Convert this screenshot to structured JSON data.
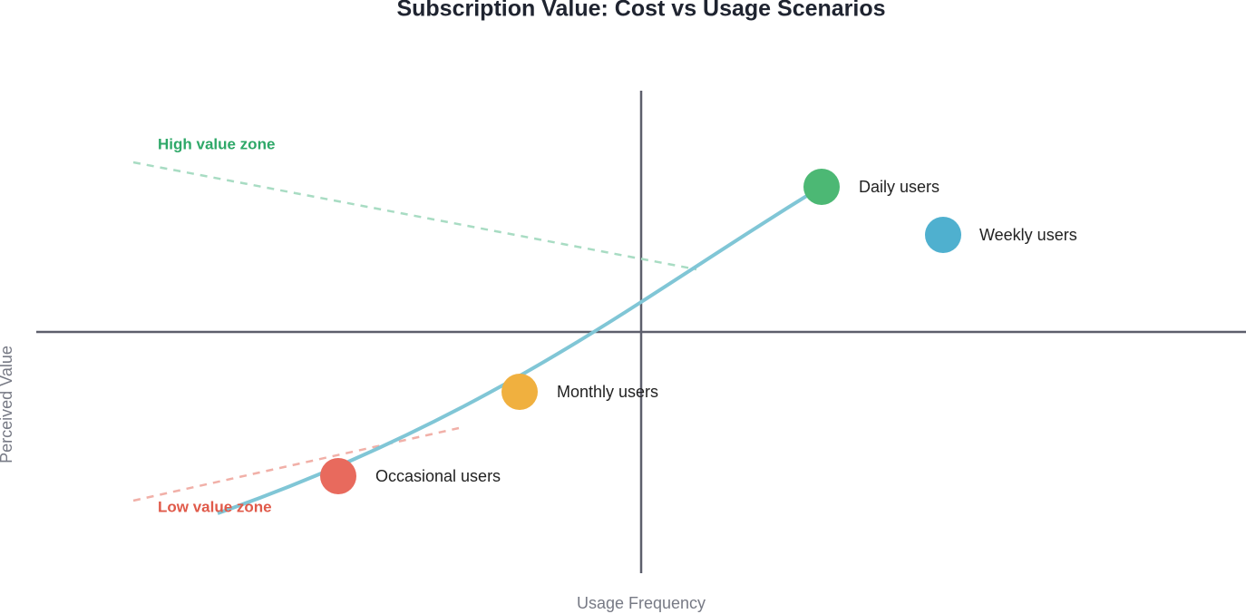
{
  "title": "Subscription Value: Cost vs Usage Scenarios",
  "x_axis_label": "Usage Frequency",
  "y_axis_label": "Perceived Value",
  "zones": [
    {
      "label": "High value zone"
    },
    {
      "label": "Low value zone"
    }
  ],
  "points": [
    {
      "label": "Daily users"
    },
    {
      "label": "Weekly users"
    },
    {
      "label": "Monthly users"
    },
    {
      "label": "Occasional users"
    }
  ]
}
